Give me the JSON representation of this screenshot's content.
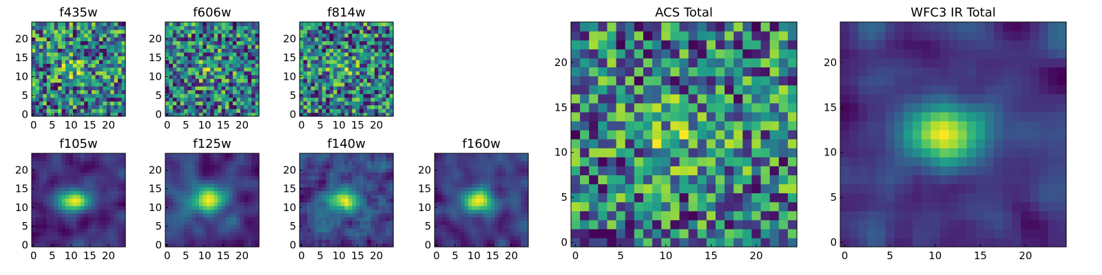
{
  "chart_data": [
    {
      "id": "f435w",
      "type": "heatmap",
      "title": "f435w",
      "colormap": "viridis",
      "seed": 11,
      "n": 25,
      "smooth": 0,
      "xticks": [
        "0",
        "5",
        "10",
        "15",
        "20"
      ],
      "yticks": [
        "0",
        "5",
        "10",
        "15",
        "20"
      ],
      "xlim": [
        -0.5,
        24.5
      ],
      "ylim": [
        -0.5,
        24.5
      ]
    },
    {
      "id": "f606w",
      "type": "heatmap",
      "title": "f606w",
      "colormap": "viridis",
      "seed": 23,
      "n": 25,
      "smooth": 0,
      "xticks": [
        "0",
        "5",
        "10",
        "15",
        "20"
      ],
      "yticks": [
        "0",
        "5",
        "10",
        "15",
        "20"
      ],
      "xlim": [
        -0.5,
        24.5
      ],
      "ylim": [
        -0.5,
        24.5
      ]
    },
    {
      "id": "f814w",
      "type": "heatmap",
      "title": "f814w",
      "colormap": "viridis",
      "seed": 37,
      "n": 25,
      "smooth": 0,
      "xticks": [
        "0",
        "5",
        "10",
        "15",
        "20"
      ],
      "yticks": [
        "0",
        "5",
        "10",
        "15",
        "20"
      ],
      "xlim": [
        -0.5,
        24.5
      ],
      "ylim": [
        -0.5,
        24.5
      ]
    },
    {
      "id": "f105w",
      "type": "heatmap",
      "title": "f105w",
      "colormap": "viridis",
      "seed": 41,
      "n": 25,
      "smooth": 2,
      "xticks": [
        "0",
        "5",
        "10",
        "15",
        "20"
      ],
      "yticks": [
        "0",
        "5",
        "10",
        "15",
        "20"
      ],
      "xlim": [
        -0.5,
        24.5
      ],
      "ylim": [
        -0.5,
        24.5
      ]
    },
    {
      "id": "f125w",
      "type": "heatmap",
      "title": "f125w",
      "colormap": "viridis",
      "seed": 53,
      "n": 25,
      "smooth": 2,
      "xticks": [
        "0",
        "5",
        "10",
        "15",
        "20"
      ],
      "yticks": [
        "0",
        "5",
        "10",
        "15",
        "20"
      ],
      "xlim": [
        -0.5,
        24.5
      ],
      "ylim": [
        -0.5,
        24.5
      ]
    },
    {
      "id": "f140w",
      "type": "heatmap",
      "title": "f140w",
      "colormap": "viridis",
      "seed": 67,
      "n": 25,
      "smooth": 1,
      "xticks": [
        "0",
        "5",
        "10",
        "15",
        "20"
      ],
      "yticks": [
        "0",
        "5",
        "10",
        "15",
        "20"
      ],
      "xlim": [
        -0.5,
        24.5
      ],
      "ylim": [
        -0.5,
        24.5
      ]
    },
    {
      "id": "f160w",
      "type": "heatmap",
      "title": "f160w",
      "colormap": "viridis",
      "seed": 79,
      "n": 25,
      "smooth": 2,
      "xticks": [
        "0",
        "5",
        "10",
        "15",
        "20"
      ],
      "yticks": [
        "0",
        "5",
        "10",
        "15",
        "20"
      ],
      "xlim": [
        -0.5,
        24.5
      ],
      "ylim": [
        -0.5,
        24.5
      ]
    },
    {
      "id": "acs-total",
      "type": "heatmap",
      "title": "ACS Total",
      "colormap": "viridis",
      "seed": 97,
      "n": 25,
      "smooth": 0,
      "xticks": [
        "0",
        "5",
        "10",
        "15",
        "20"
      ],
      "yticks": [
        "0",
        "5",
        "10",
        "15",
        "20"
      ],
      "xlim": [
        -0.5,
        24.5
      ],
      "ylim": [
        -0.5,
        24.5
      ]
    },
    {
      "id": "wfc3-ir-total",
      "type": "heatmap",
      "title": "WFC3 IR Total",
      "colormap": "viridis",
      "seed": 113,
      "n": 25,
      "smooth": 2,
      "xticks": [
        "0",
        "5",
        "10",
        "15",
        "20"
      ],
      "yticks": [
        "0",
        "5",
        "10",
        "15",
        "20"
      ],
      "xlim": [
        -0.5,
        24.5
      ],
      "ylim": [
        -0.5,
        24.5
      ]
    }
  ]
}
